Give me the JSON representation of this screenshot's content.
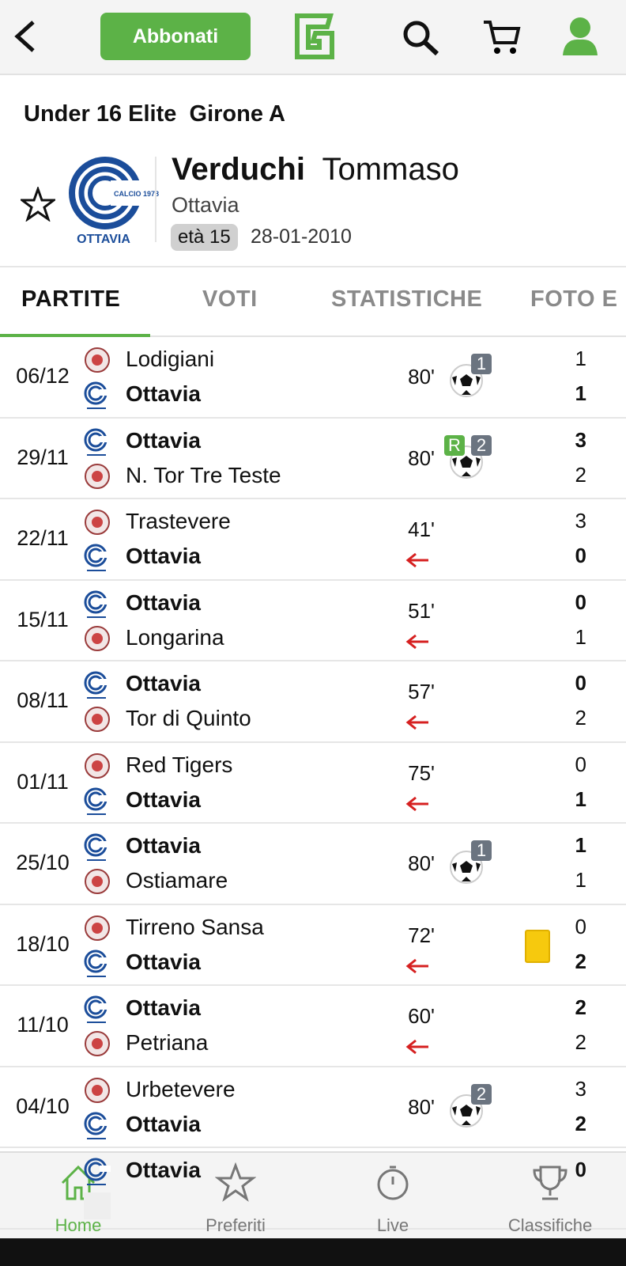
{
  "header": {
    "subscribe": "Abbonati"
  },
  "competition": {
    "league": "Under 16 Elite",
    "group": "Girone A"
  },
  "player": {
    "surname": "Verduchi",
    "name": "Tommaso",
    "team": "Ottavia",
    "age": "età 15",
    "birth_date": "28-01-2010",
    "logo_text": "OTTAVIA",
    "logo_caption": "CALCIO 1978"
  },
  "tabs": [
    "PARTITE",
    "VOTI",
    "STATISTICHE",
    "FOTO E"
  ],
  "matches": [
    {
      "date": "06/12",
      "home": "Lodigiani",
      "away": "Ottavia",
      "minutes": "80'",
      "goals": "1",
      "home_score": "1",
      "away_score": "1"
    },
    {
      "date": "29/11",
      "home": "Ottavia",
      "away": "N. Tor Tre Teste",
      "minutes": "80'",
      "penalty": "R",
      "goals": "2",
      "home_score": "3",
      "away_score": "2"
    },
    {
      "date": "22/11",
      "home": "Trastevere",
      "away": "Ottavia",
      "minutes": "41'",
      "subbed_off": true,
      "home_score": "3",
      "away_score": "0"
    },
    {
      "date": "15/11",
      "home": "Ottavia",
      "away": "Longarina",
      "minutes": "51'",
      "subbed_off": true,
      "home_score": "0",
      "away_score": "1"
    },
    {
      "date": "08/11",
      "home": "Ottavia",
      "away": "Tor di Quinto",
      "minutes": "57'",
      "subbed_off": true,
      "home_score": "0",
      "away_score": "2"
    },
    {
      "date": "01/11",
      "home": "Red Tigers",
      "away": "Ottavia",
      "minutes": "75'",
      "subbed_off": true,
      "home_score": "0",
      "away_score": "1"
    },
    {
      "date": "25/10",
      "home": "Ottavia",
      "away": "Ostiamare",
      "minutes": "80'",
      "goals": "1",
      "home_score": "1",
      "away_score": "1"
    },
    {
      "date": "18/10",
      "home": "Tirreno Sansa",
      "away": "Ottavia",
      "minutes": "72'",
      "subbed_off": true,
      "yellow_card": true,
      "home_score": "0",
      "away_score": "2"
    },
    {
      "date": "11/10",
      "home": "Ottavia",
      "away": "Petriana",
      "minutes": "60'",
      "subbed_off": true,
      "home_score": "2",
      "away_score": "2"
    },
    {
      "date": "04/10",
      "home": "Urbetevere",
      "away": "Ottavia",
      "minutes": "80'",
      "goals": "2",
      "home_score": "3",
      "away_score": "2"
    },
    {
      "home": "Ottavia",
      "home_score": "0"
    }
  ],
  "nav": [
    "Home",
    "Preferiti",
    "Live",
    "Classifiche"
  ]
}
